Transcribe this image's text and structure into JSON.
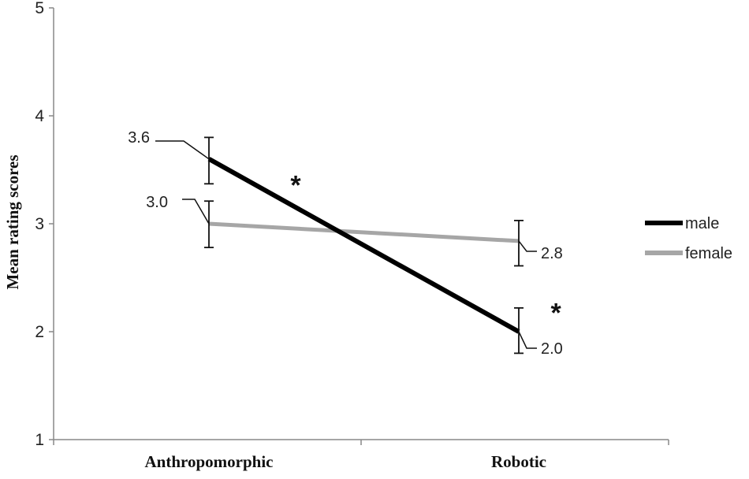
{
  "chart_data": {
    "type": "line",
    "ylabel": "Mean rating scores",
    "xlabel": "",
    "ylim": [
      1,
      5
    ],
    "yticks": [
      "1",
      "2",
      "3",
      "4",
      "5"
    ],
    "categories": [
      "Anthropomorphic",
      "Robotic"
    ],
    "grid": false,
    "legend_position": "right",
    "series": [
      {
        "name": "male",
        "color": "#000000",
        "values": [
          3.6,
          2.0
        ],
        "errors": [
          [
            3.37,
            3.8
          ],
          [
            1.8,
            2.22
          ]
        ],
        "labels": [
          "3.6",
          "2.0"
        ]
      },
      {
        "name": "female",
        "color": "#a6a6a6",
        "values": [
          3.0,
          2.84
        ],
        "errors": [
          [
            2.78,
            3.21
          ],
          [
            2.61,
            3.03
          ]
        ],
        "labels": [
          "3.0",
          "2.8"
        ]
      }
    ],
    "annotations": [
      {
        "text": "*",
        "x": 1.28,
        "y": 3.36
      },
      {
        "text": "*",
        "x": 2.12,
        "y": 2.18
      }
    ]
  }
}
